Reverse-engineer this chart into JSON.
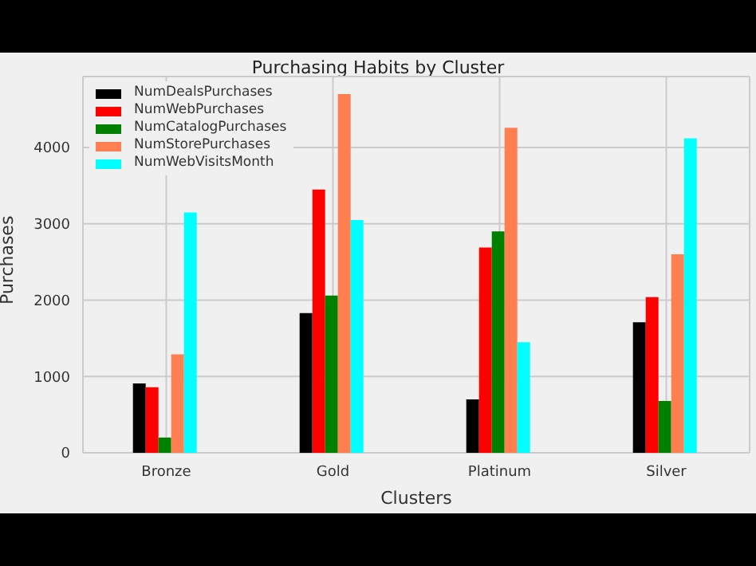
{
  "chart_data": {
    "type": "bar",
    "title": "Purchasing Habits by Cluster",
    "xlabel": "Clusters",
    "ylabel": "Purchases",
    "categories": [
      "Bronze",
      "Gold",
      "Platinum",
      "Silver"
    ],
    "series": [
      {
        "name": "NumDealsPurchases",
        "color": "#000000",
        "values": [
          910,
          1830,
          700,
          1710
        ]
      },
      {
        "name": "NumWebPurchases",
        "color": "#ff0000",
        "values": [
          860,
          3450,
          2690,
          2040
        ]
      },
      {
        "name": "NumCatalogPurchases",
        "color": "#008000",
        "values": [
          200,
          2060,
          2900,
          680
        ]
      },
      {
        "name": "NumStorePurchases",
        "color": "#ff7f50",
        "values": [
          1290,
          4700,
          4260,
          2600
        ]
      },
      {
        "name": "NumWebVisitsMonth",
        "color": "#00ffff",
        "values": [
          3150,
          3050,
          1450,
          4120
        ]
      }
    ],
    "ylim": [
      0,
      4930
    ],
    "yticks": [
      0,
      1000,
      2000,
      3000,
      4000
    ],
    "grid": true,
    "legend": "top left"
  }
}
